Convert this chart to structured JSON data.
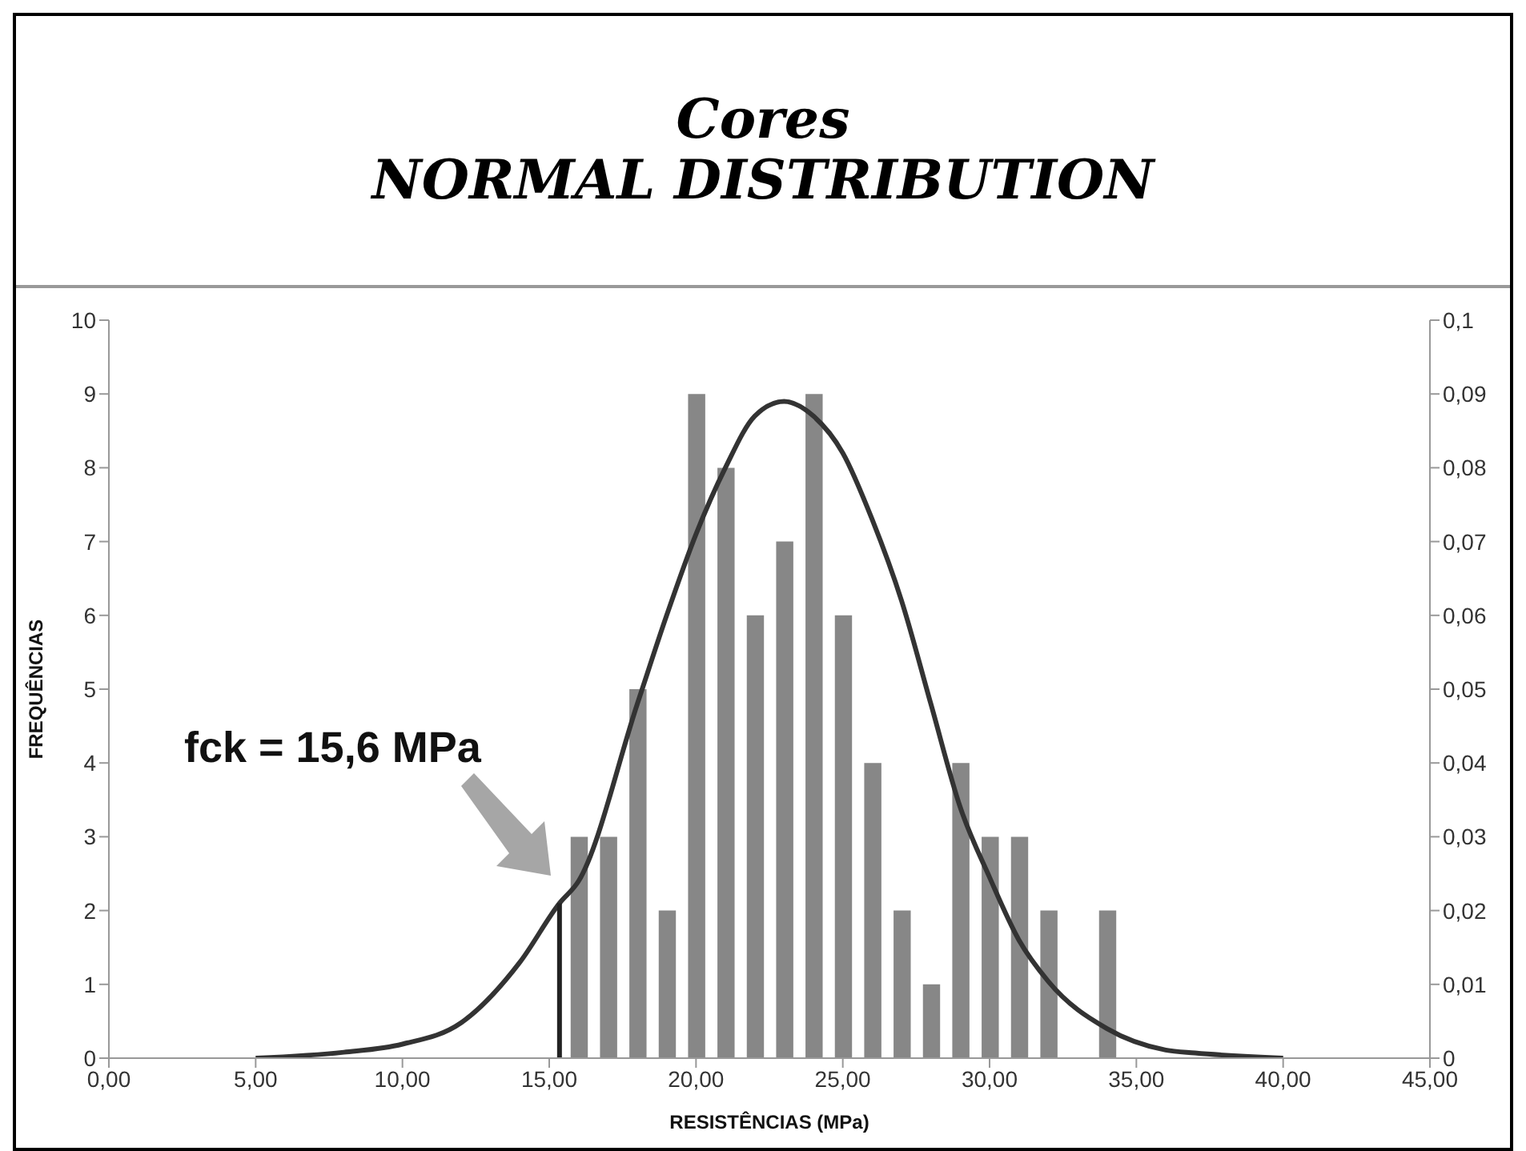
{
  "chart_data": {
    "type": "bar",
    "title": "Cores",
    "subtitle": "NORMAL DISTRIBUTION",
    "xlabel": "RESISTÊNCIAS (MPa)",
    "ylabel": "FREQUÊNCIAS",
    "x": [
      16,
      17,
      18,
      19,
      20,
      21,
      22,
      23,
      24,
      25,
      26,
      27,
      28,
      29,
      30,
      31,
      32,
      34
    ],
    "series": [
      {
        "color": "#878787",
        "values": [
          3,
          3,
          5,
          2,
          9,
          8,
          6,
          7,
          9,
          6,
          4,
          2,
          1,
          4,
          3,
          3,
          2,
          2
        ]
      },
      {
        "type": "line",
        "axis": "y2",
        "color": "#333333",
        "x": [
          5,
          8,
          10,
          12,
          14,
          15.35,
          16,
          18,
          19,
          20,
          21,
          22,
          23,
          24,
          25,
          26,
          27,
          28,
          29,
          30,
          31,
          32,
          34,
          36,
          37,
          40
        ],
        "values": [
          0,
          0.0008,
          0.0019,
          0.0048,
          0.013,
          0.021,
          0.024,
          0.048,
          0.06,
          0.071,
          0.08,
          0.087,
          0.089,
          0.087,
          0.082,
          0.073,
          0.062,
          0.048,
          0.034,
          0.0245,
          0.016,
          0.0104,
          0.004,
          0.0011,
          0.0007,
          0
        ]
      }
    ],
    "xlim": [
      0,
      45
    ],
    "xticks": [
      {
        "value": 0,
        "label": "0,00"
      },
      {
        "value": 5,
        "label": "5,00"
      },
      {
        "value": 10,
        "label": "10,00"
      },
      {
        "value": 15,
        "label": "15,00"
      },
      {
        "value": 20,
        "label": "20,00"
      },
      {
        "value": 25,
        "label": "25,00"
      },
      {
        "value": 30,
        "label": "30,00"
      },
      {
        "value": 35,
        "label": "35,00"
      },
      {
        "value": 40,
        "label": "40,00"
      },
      {
        "value": 45,
        "label": "45,00"
      }
    ],
    "ylim": [
      0,
      10
    ],
    "yticks": [
      0,
      1,
      2,
      3,
      4,
      5,
      6,
      7,
      8,
      9,
      10
    ],
    "y2lim": [
      0,
      0.1
    ],
    "y2ticks": [
      0,
      {
        "value": 0.01,
        "label": "0,01"
      },
      {
        "value": 0.02,
        "label": "0,02"
      },
      {
        "value": 0.03,
        "label": "0,03"
      },
      {
        "value": 0.04,
        "label": "0,04"
      },
      {
        "value": 0.05,
        "label": "0,05"
      },
      {
        "value": 0.06,
        "label": "0,06"
      },
      {
        "value": 0.07,
        "label": "0,07"
      },
      {
        "value": 0.08,
        "label": "0,08"
      },
      {
        "value": 0.09,
        "label": "0,09"
      },
      {
        "value": 0.1,
        "label": "0,1"
      }
    ],
    "ref_lines": [
      {
        "axis": "x",
        "value": 15.35,
        "color": "#222222"
      }
    ],
    "annotations": [
      "fck = 15,6 MPa"
    ]
  }
}
